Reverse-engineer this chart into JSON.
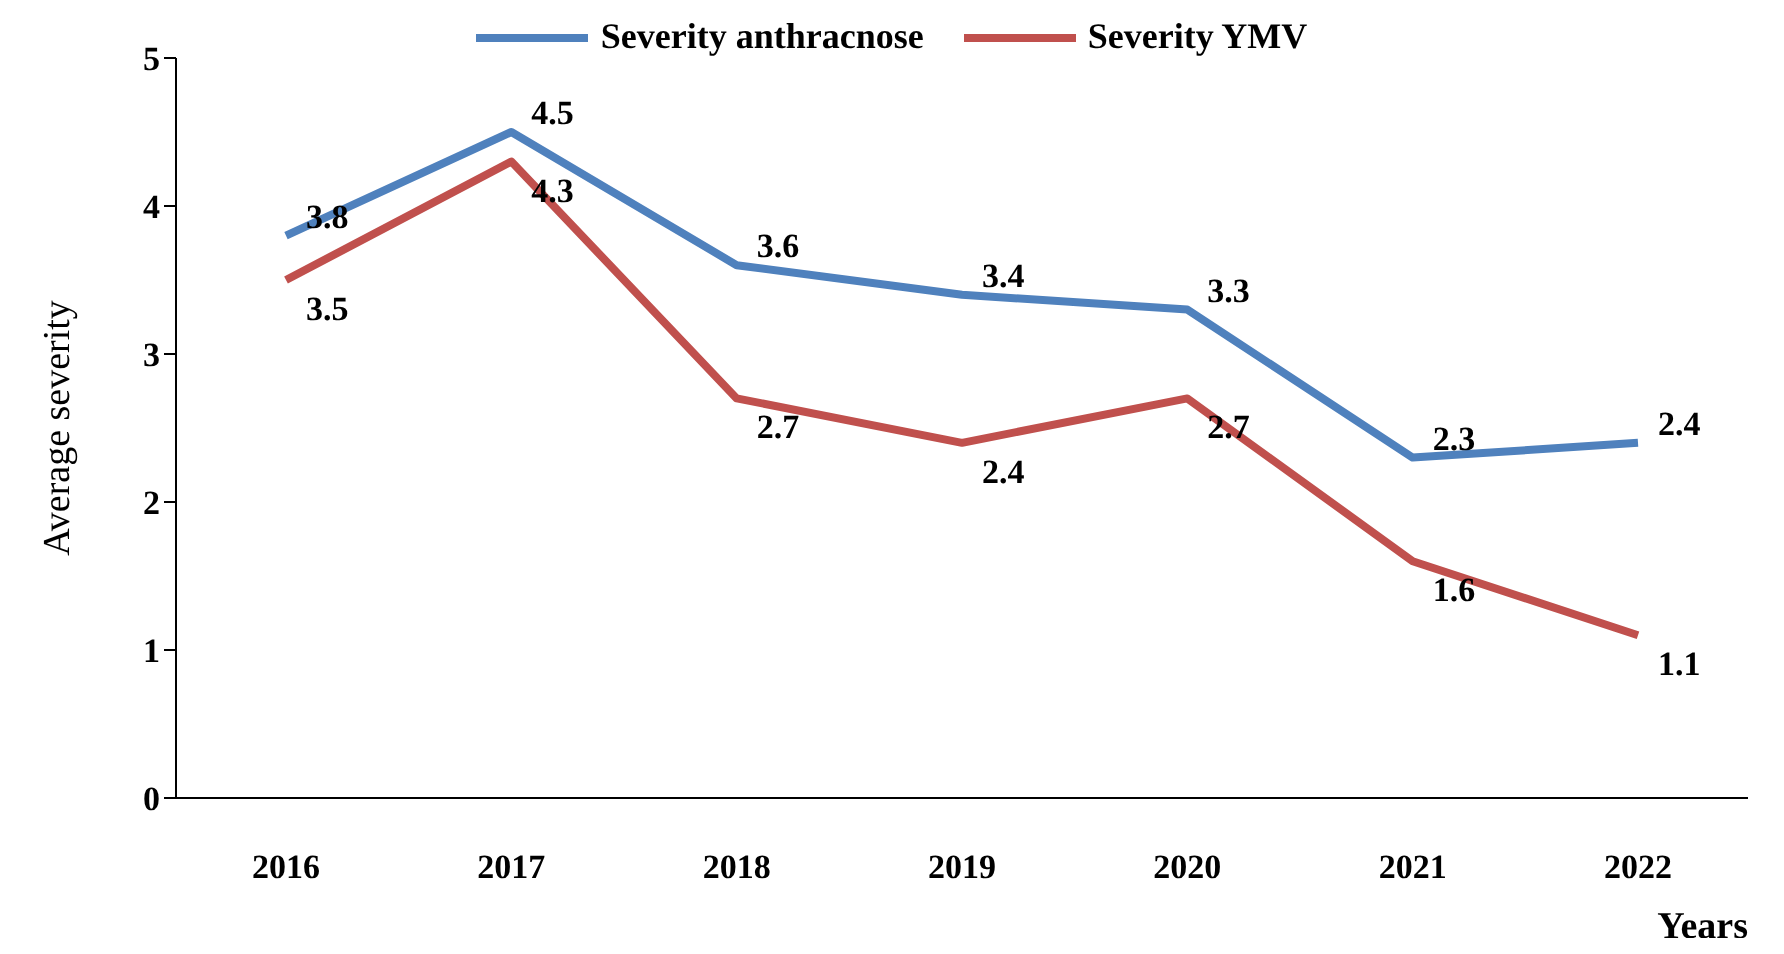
{
  "chart_data": {
    "type": "line",
    "categories": [
      "2016",
      "2017",
      "2018",
      "2019",
      "2020",
      "2021",
      "2022"
    ],
    "series": [
      {
        "name": "Severity anthracnose",
        "color": "#4f81bd",
        "values": [
          3.8,
          4.5,
          3.6,
          3.4,
          3.3,
          2.3,
          2.4
        ]
      },
      {
        "name": "Severity YMV",
        "color": "#c0504d",
        "values": [
          3.5,
          4.3,
          2.7,
          2.4,
          2.7,
          1.6,
          1.1
        ]
      }
    ],
    "xlabel": "Years",
    "ylabel": "Average severity",
    "ylim": [
      0,
      5
    ],
    "yticks": [
      0,
      1,
      2,
      3,
      4,
      5
    ],
    "data_labels": true,
    "legend": "top",
    "grid": false,
    "marker": "none"
  }
}
